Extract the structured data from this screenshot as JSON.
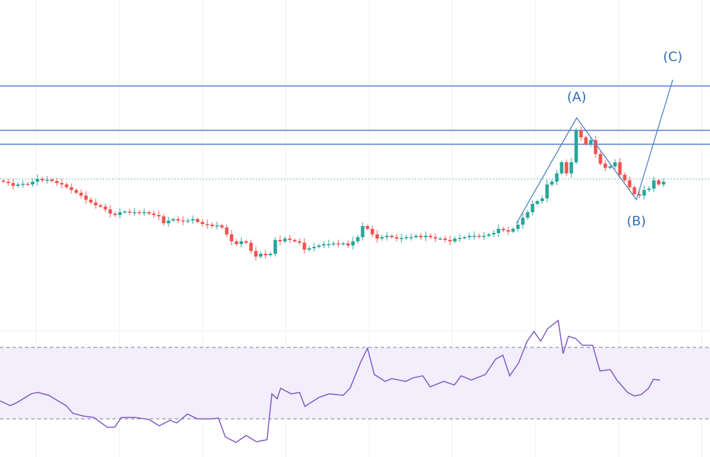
{
  "chart_data": {
    "type": "candlestick",
    "title": "",
    "xlabel": "",
    "ylabel": "",
    "price_range": [
      -100,
      230
    ],
    "grid": true,
    "colors": {
      "up": "#26a69a",
      "down": "#ef5350",
      "drawing": "#2f5fd0",
      "wave": "#4a7fc0",
      "rsi": "#7e57c2",
      "rsi_band": "#f3eefc",
      "grid": "#f0f0f0"
    },
    "closes": [
      98,
      97,
      95,
      96,
      96.5,
      96,
      98,
      100,
      99,
      99.5,
      98.5,
      97,
      96,
      94,
      92,
      90,
      88,
      85,
      83,
      81,
      80,
      78,
      75,
      74,
      76,
      76.5,
      76,
      76,
      75.5,
      76,
      75,
      74,
      73,
      68,
      70,
      71,
      70,
      69.5,
      70,
      71,
      69,
      67.5,
      67,
      66,
      66.5,
      65,
      60,
      55,
      53,
      55,
      54,
      48,
      44,
      46,
      45,
      46,
      56,
      55,
      57,
      56,
      55,
      54,
      49,
      50,
      51,
      52,
      53,
      53,
      53.5,
      53,
      53.5,
      52,
      55,
      58,
      66,
      64,
      60,
      57,
      58,
      59,
      58,
      57,
      57.5,
      58,
      58,
      59,
      58,
      59,
      58,
      57,
      57,
      56,
      55,
      57,
      57.5,
      58,
      59,
      59,
      58.5,
      59,
      60,
      61,
      64,
      63,
      62,
      64,
      67,
      72,
      76,
      82,
      84,
      86,
      96,
      98,
      104,
      112,
      104,
      112,
      135,
      130,
      125,
      128,
      118,
      111,
      108,
      109,
      112,
      103,
      99,
      94,
      89,
      88,
      92,
      93,
      99,
      96,
      98
    ],
    "last_price_line": 100,
    "horizontal_levels": [
      167,
      135,
      125
    ],
    "elliott_wave": {
      "points": [
        [
          105.7,
          68
        ],
        [
          118.1,
          144
        ],
        [
          130.4,
          85
        ],
        [
          137.9,
          171.5
        ]
      ],
      "labels": [
        {
          "text": "(A)",
          "index": 118.1,
          "price": 144
        },
        {
          "text": "(B)",
          "index": 130.4,
          "price": 85
        },
        {
          "text": "(C)",
          "index": 137.9,
          "price": 171.5
        }
      ]
    },
    "rsi": {
      "upper": 70,
      "lower": 30,
      "range": [
        0,
        100
      ],
      "points": [
        [
          -0.7,
          40.1
        ],
        [
          1.4,
          37.4
        ],
        [
          2.9,
          39.3
        ],
        [
          5.7,
          44
        ],
        [
          7.1,
          44.8
        ],
        [
          9.3,
          43.2
        ],
        [
          12.9,
          37.4
        ],
        [
          14.3,
          33.1
        ],
        [
          16.4,
          31.6
        ],
        [
          18.6,
          30.8
        ],
        [
          21.4,
          25.3
        ],
        [
          22.9,
          25.3
        ],
        [
          24.3,
          30.8
        ],
        [
          27.1,
          30.8
        ],
        [
          30,
          29.6
        ],
        [
          32.1,
          26.1
        ],
        [
          34.3,
          29.2
        ],
        [
          35.7,
          27.7
        ],
        [
          37.9,
          32.7
        ],
        [
          40,
          30
        ],
        [
          42.9,
          30
        ],
        [
          44.3,
          30.4
        ],
        [
          45.7,
          19.9
        ],
        [
          47.9,
          16.8
        ],
        [
          50,
          20.7
        ],
        [
          52.1,
          17.2
        ],
        [
          54.3,
          18.3
        ],
        [
          55.3,
          44
        ],
        [
          56.4,
          41.3
        ],
        [
          57.1,
          47.1
        ],
        [
          59.3,
          44
        ],
        [
          61,
          44.8
        ],
        [
          62.1,
          37
        ],
        [
          65,
          42
        ],
        [
          67.1,
          44
        ],
        [
          70,
          43.2
        ],
        [
          71.4,
          47.1
        ],
        [
          73.6,
          61.8
        ],
        [
          75,
          69.6
        ],
        [
          76.4,
          54.9
        ],
        [
          78.6,
          51
        ],
        [
          80,
          52.5
        ],
        [
          82.9,
          51
        ],
        [
          84.3,
          52.9
        ],
        [
          86.4,
          54.1
        ],
        [
          87.9,
          47.9
        ],
        [
          90.7,
          51
        ],
        [
          92.9,
          49
        ],
        [
          94.3,
          54.1
        ],
        [
          96.4,
          51.7
        ],
        [
          99.3,
          54.9
        ],
        [
          101.4,
          63.4
        ],
        [
          102.9,
          65.7
        ],
        [
          104.3,
          54.1
        ],
        [
          106.1,
          61.1
        ],
        [
          107.9,
          73.5
        ],
        [
          109.3,
          78.9
        ],
        [
          110.7,
          73.5
        ],
        [
          112.1,
          80.5
        ],
        [
          114.3,
          85.1
        ],
        [
          115.3,
          66.5
        ],
        [
          116.4,
          76.2
        ],
        [
          117.9,
          75
        ],
        [
          119.3,
          71.2
        ],
        [
          121.4,
          71.2
        ],
        [
          122.9,
          56.8
        ],
        [
          125,
          57.6
        ],
        [
          126.4,
          51.7
        ],
        [
          128.6,
          44.8
        ],
        [
          130,
          42.8
        ],
        [
          131.4,
          43.6
        ],
        [
          132.9,
          47.1
        ],
        [
          133.9,
          52.1
        ],
        [
          135.3,
          51.7
        ]
      ]
    }
  }
}
